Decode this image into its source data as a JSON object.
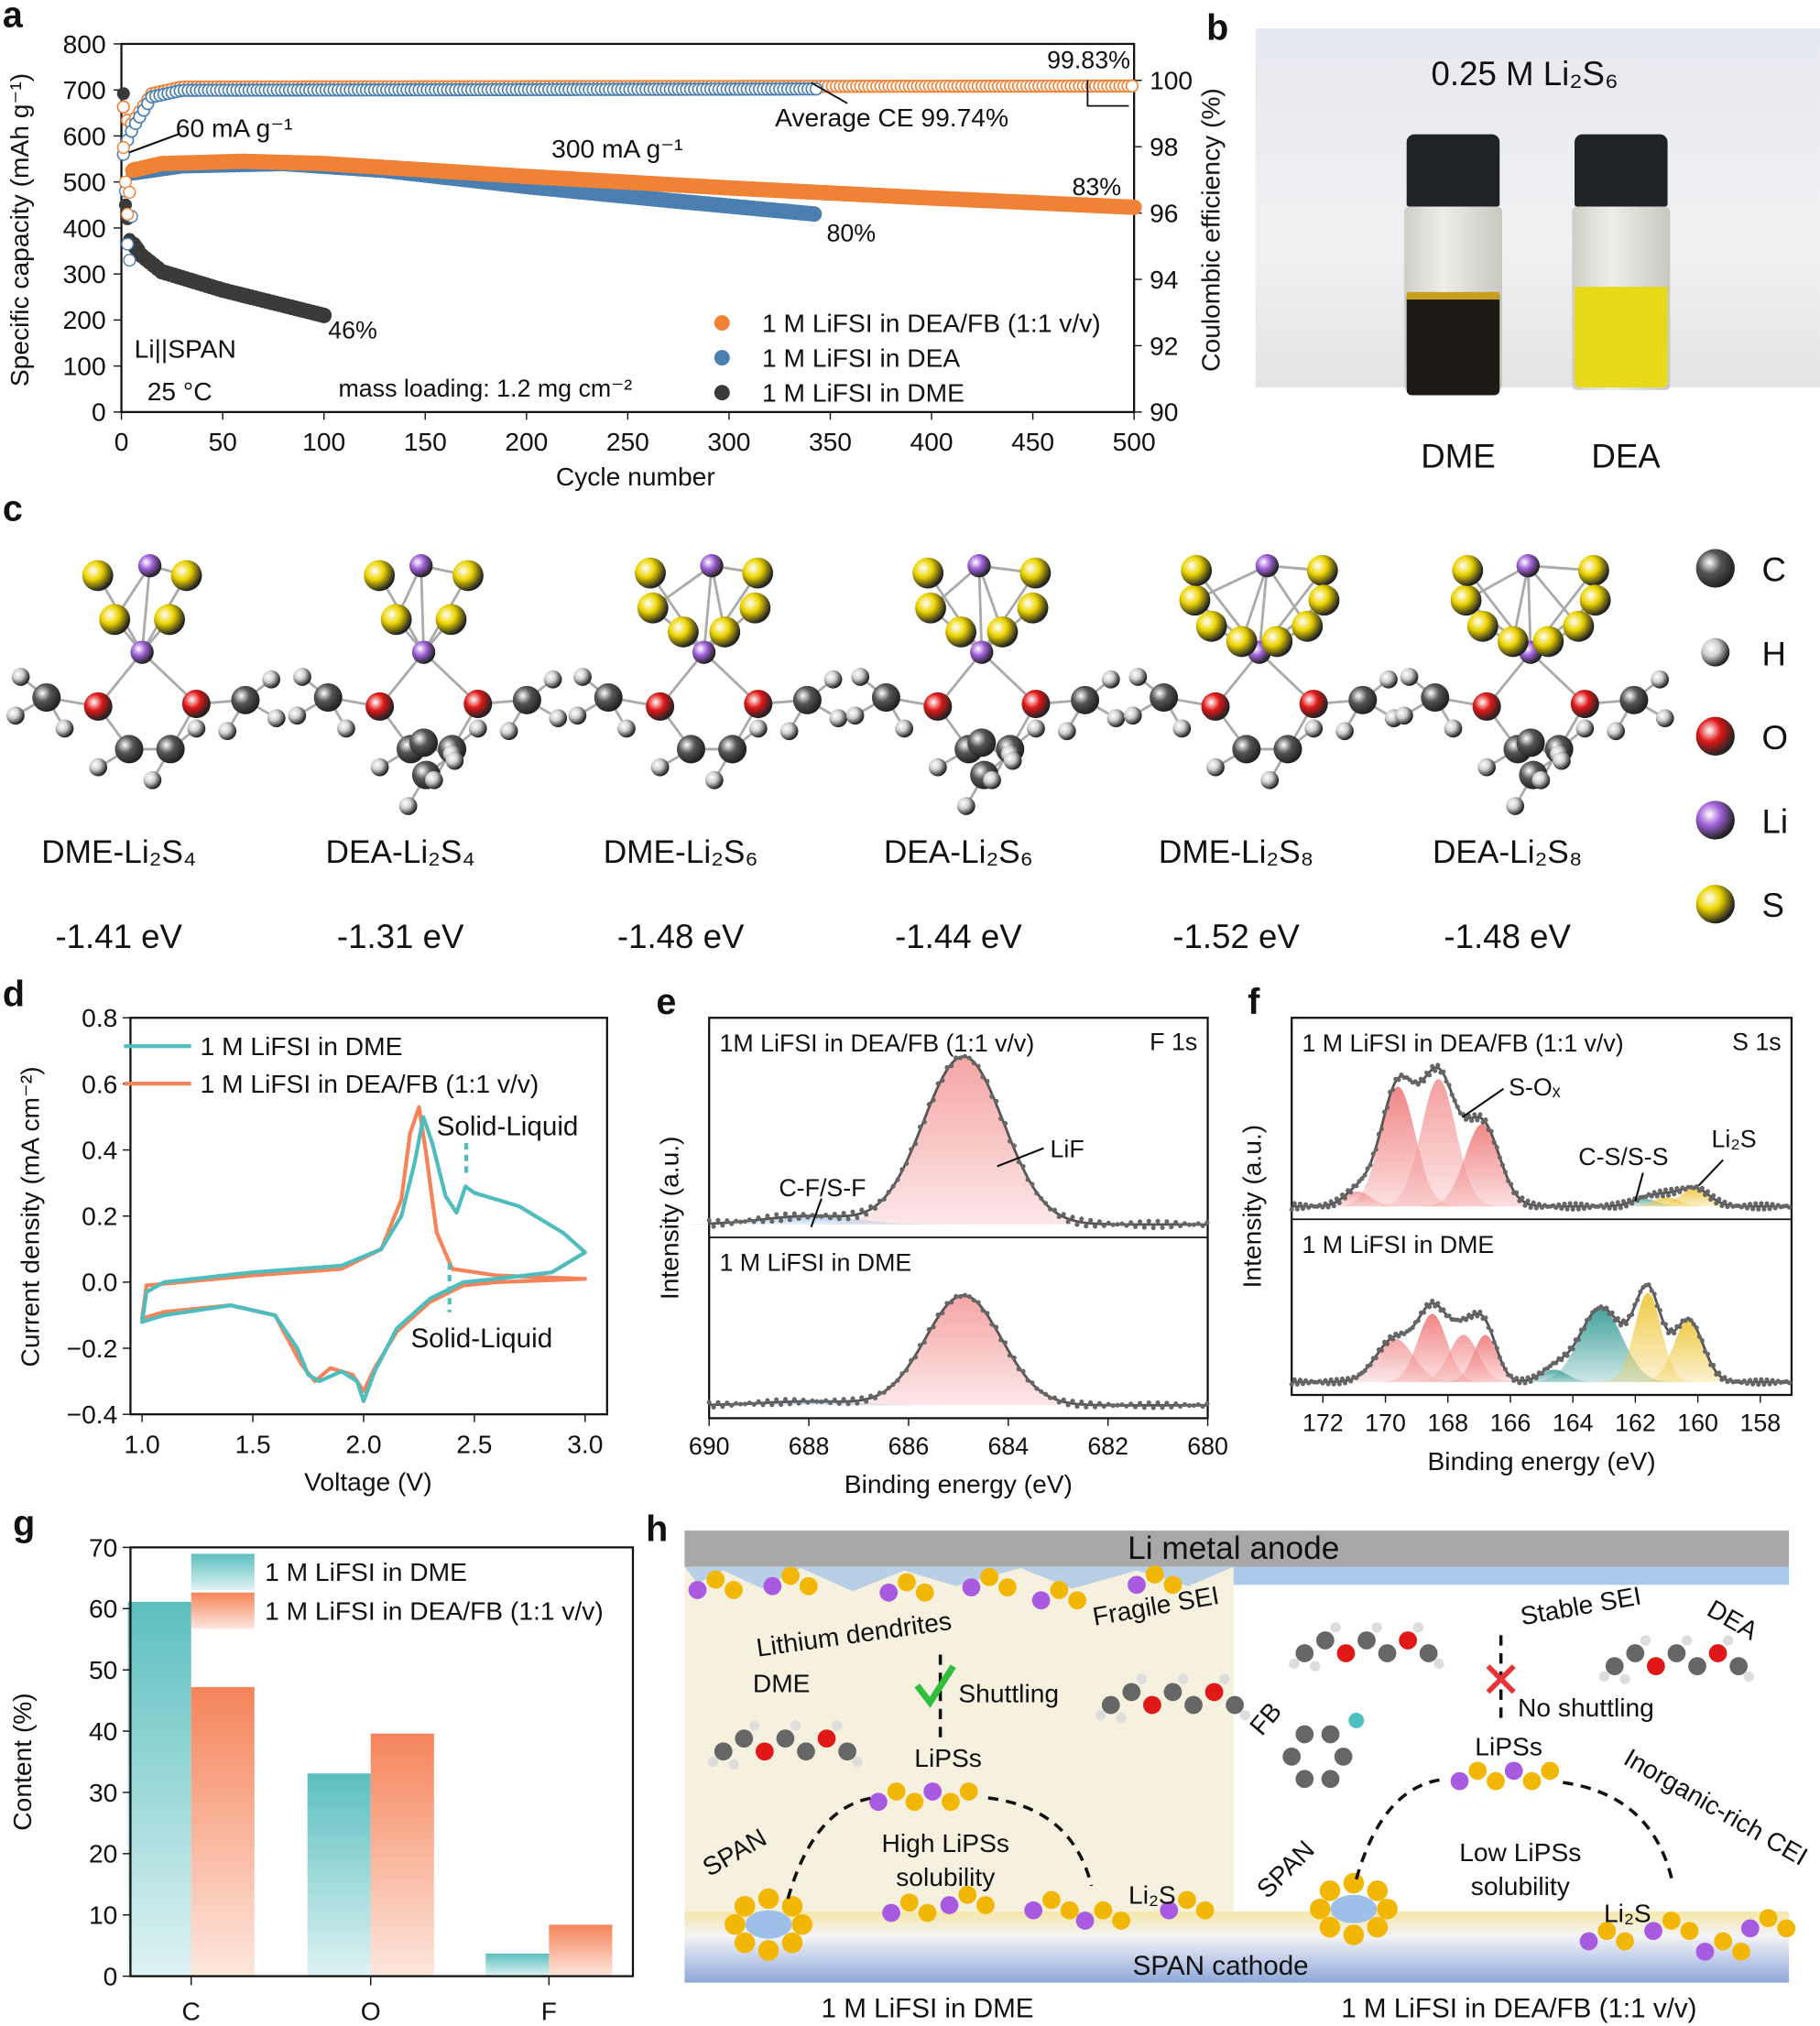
{
  "panel_labels": {
    "a": "a",
    "b": "b",
    "c": "c",
    "d": "d",
    "e": "e",
    "f": "f",
    "g": "g",
    "h": "h"
  },
  "colors": {
    "orange": "#f08236",
    "blue": "#4a7fb0",
    "dark": "#3a3a3a",
    "teal": "#4fbdbd",
    "salmon": "#f5845a",
    "fit_gray": "#707070"
  },
  "chart_data": [
    {
      "id": "a",
      "type": "scatter",
      "xlabel": "Cycle number",
      "ylabel": "Specific capacity (mAh g⁻¹)",
      "y2label": "Coulombic efficiency (%)",
      "xlim": [
        0,
        500
      ],
      "ylim": [
        0,
        800
      ],
      "y2lim": [
        90,
        101.1
      ],
      "xticks": [
        0,
        50,
        100,
        150,
        200,
        250,
        300,
        350,
        400,
        450,
        500
      ],
      "yticks": [
        0,
        100,
        200,
        300,
        400,
        500,
        600,
        700,
        800
      ],
      "y2ticks": [
        90,
        92,
        94,
        96,
        98,
        100
      ],
      "series": [
        {
          "name": "1 M LiFSI in DEA/FB (1:1 v/v)",
          "color": "#f08236",
          "capacity": [
            [
              1,
              575
            ],
            [
              2,
              500
            ],
            [
              3,
              430
            ],
            [
              5,
              525
            ],
            [
              20,
              540
            ],
            [
              60,
              545
            ],
            [
              100,
              540
            ],
            [
              200,
              512
            ],
            [
              300,
              487
            ],
            [
              400,
              465
            ],
            [
              500,
              445
            ]
          ],
          "ce": [
            [
              1,
              99.2
            ],
            [
              4,
              98.6
            ],
            [
              15,
              99.6
            ],
            [
              30,
              99.8
            ],
            [
              500,
              99.83
            ]
          ]
        },
        {
          "name": "1 M LiFSI in DEA",
          "color": "#4a7fb0",
          "capacity": [
            [
              1,
              560
            ],
            [
              2,
              480
            ],
            [
              3,
              365
            ],
            [
              4,
              330
            ],
            [
              6,
              520
            ],
            [
              30,
              535
            ],
            [
              80,
              540
            ],
            [
              130,
              525
            ],
            [
              200,
              490
            ],
            [
              270,
              460
            ],
            [
              343,
              430
            ]
          ],
          "ce": [
            [
              3,
              98.2
            ],
            [
              6,
              98.6
            ],
            [
              15,
              99.5
            ],
            [
              30,
              99.7
            ],
            [
              343,
              99.74
            ]
          ]
        },
        {
          "name": "1 M LiFSI in DME",
          "color": "#3a3a3a",
          "capacity": [
            [
              1,
              560
            ],
            [
              2,
              450
            ],
            [
              3,
              420
            ],
            [
              4,
              375
            ],
            [
              5,
              370
            ],
            [
              10,
              340
            ],
            [
              20,
              305
            ],
            [
              50,
              265
            ],
            [
              100,
              210
            ]
          ],
          "ce": [
            [
              1,
              99.6
            ]
          ]
        }
      ],
      "annotations": {
        "rate1": "60 mA g⁻¹",
        "rate2": "300 mA g⁻¹",
        "ce_max": "99.83%",
        "ce_avg": "Average CE 99.74%",
        "ret_deafb": "83%",
        "ret_dea": "80%",
        "ret_dme": "46%",
        "cell": "Li||SPAN",
        "temp": "25 °C",
        "loading": "mass loading: 1.2 mg cm⁻²"
      },
      "grid": false,
      "legend": "bottom-right"
    },
    {
      "id": "d",
      "type": "line",
      "xlabel": "Voltage (V)",
      "ylabel": "Current density (mA cm⁻²)",
      "xlim": [
        0.9,
        3.1
      ],
      "ylim": [
        -0.4,
        0.8
      ],
      "xticks": [
        1.0,
        1.5,
        2.0,
        2.5,
        3.0
      ],
      "yticks": [
        -0.4,
        -0.2,
        0.0,
        0.2,
        0.4,
        0.6,
        0.8
      ],
      "series": [
        {
          "name": "1 M LiFSI in DME",
          "color": "#4fbdbd",
          "points": [
            [
              1.0,
              -0.12
            ],
            [
              1.02,
              -0.03
            ],
            [
              1.1,
              0.0
            ],
            [
              1.5,
              0.03
            ],
            [
              1.9,
              0.05
            ],
            [
              2.08,
              0.1
            ],
            [
              2.17,
              0.2
            ],
            [
              2.23,
              0.36
            ],
            [
              2.27,
              0.5
            ],
            [
              2.31,
              0.42
            ],
            [
              2.37,
              0.26
            ],
            [
              2.42,
              0.21
            ],
            [
              2.46,
              0.29
            ],
            [
              2.5,
              0.27
            ],
            [
              2.7,
              0.23
            ],
            [
              2.9,
              0.15
            ],
            [
              3.0,
              0.09
            ],
            [
              2.85,
              0.03
            ],
            [
              2.6,
              0.01
            ],
            [
              2.45,
              0.0
            ],
            [
              2.3,
              -0.05
            ],
            [
              2.15,
              -0.14
            ],
            [
              2.05,
              -0.27
            ],
            [
              2.0,
              -0.36
            ],
            [
              1.97,
              -0.3
            ],
            [
              1.9,
              -0.27
            ],
            [
              1.8,
              -0.3
            ],
            [
              1.75,
              -0.28
            ],
            [
              1.7,
              -0.2
            ],
            [
              1.6,
              -0.1
            ],
            [
              1.4,
              -0.07
            ],
            [
              1.1,
              -0.1
            ],
            [
              1.0,
              -0.12
            ]
          ]
        },
        {
          "name": "1 M LiFSI in DEA/FB (1:1 v/v)",
          "color": "#f5845a",
          "points": [
            [
              1.0,
              -0.11
            ],
            [
              1.02,
              -0.01
            ],
            [
              1.5,
              0.02
            ],
            [
              1.9,
              0.04
            ],
            [
              2.08,
              0.1
            ],
            [
              2.17,
              0.25
            ],
            [
              2.21,
              0.45
            ],
            [
              2.25,
              0.53
            ],
            [
              2.28,
              0.4
            ],
            [
              2.33,
              0.15
            ],
            [
              2.4,
              0.04
            ],
            [
              2.6,
              0.02
            ],
            [
              3.0,
              0.01
            ],
            [
              2.6,
              0.0
            ],
            [
              2.45,
              -0.01
            ],
            [
              2.3,
              -0.06
            ],
            [
              2.15,
              -0.15
            ],
            [
              2.05,
              -0.26
            ],
            [
              2.0,
              -0.33
            ],
            [
              1.95,
              -0.28
            ],
            [
              1.85,
              -0.26
            ],
            [
              1.78,
              -0.3
            ],
            [
              1.72,
              -0.25
            ],
            [
              1.6,
              -0.1
            ],
            [
              1.4,
              -0.07
            ],
            [
              1.1,
              -0.09
            ],
            [
              1.0,
              -0.11
            ]
          ]
        }
      ],
      "annotations": {
        "oxidation": "Solid-Liquid",
        "reduction": "Solid-Liquid"
      },
      "legend": "top-left"
    },
    {
      "id": "e",
      "type": "area",
      "xlabel": "Binding energy (eV)",
      "ylabel": "Intensity (a.u.)",
      "xlim": [
        690,
        680
      ],
      "xticks": [
        690,
        688,
        686,
        684,
        682,
        680
      ],
      "corner_label": "F 1s",
      "spectra": [
        {
          "name": "1M LiFSI in DEA/FB (1:1 v/v)",
          "peaks": [
            {
              "label": "LiF",
              "center": 684.9,
              "height": 1.0,
              "fwhm": 1.9,
              "color": "#f4a0a0"
            },
            {
              "label": "C-F/S-F",
              "center": 688.0,
              "height": 0.05,
              "fwhm": 2.2,
              "color": "#a8c8e8"
            }
          ]
        },
        {
          "name": "1 M LiFSI in DME",
          "peaks": [
            {
              "label": "",
              "center": 684.9,
              "height": 0.85,
              "fwhm": 1.8,
              "color": "#f4a0a0"
            },
            {
              "label": "",
              "center": 688.0,
              "height": 0.03,
              "fwhm": 2.2,
              "color": "#a8c8e8"
            }
          ]
        }
      ]
    },
    {
      "id": "f",
      "type": "area",
      "xlabel": "Binding energy (eV)",
      "ylabel": "Intensity (a.u.)",
      "xlim": [
        173,
        157
      ],
      "xticks": [
        172,
        170,
        168,
        166,
        164,
        162,
        160,
        158
      ],
      "corner_label": "S 1s",
      "labels": {
        "sox": "S-Oₓ",
        "cs": "C-S/S-S",
        "li2s": "Li₂S"
      },
      "spectra": [
        {
          "name": "1 M LiFSI in DEA/FB (1:1 v/v)",
          "peaks": [
            {
              "center": 170.9,
              "height": 0.1,
              "fwhm": 1.0,
              "color": "#f4a0a0"
            },
            {
              "center": 169.6,
              "height": 0.8,
              "fwhm": 1.3,
              "color": "#f08080"
            },
            {
              "center": 168.3,
              "height": 0.85,
              "fwhm": 1.3,
              "color": "#f49a9a"
            },
            {
              "center": 166.9,
              "height": 0.55,
              "fwhm": 1.3,
              "color": "#f08080"
            },
            {
              "center": 161.7,
              "height": 0.05,
              "fwhm": 1.0,
              "color": "#6ab0ae"
            },
            {
              "center": 161.0,
              "height": 0.06,
              "fwhm": 1.0,
              "color": "#f0c840"
            },
            {
              "center": 160.1,
              "height": 0.12,
              "fwhm": 1.1,
              "color": "#f0c840"
            }
          ]
        },
        {
          "name": "1 M LiFSI in DME",
          "peaks": [
            {
              "center": 169.7,
              "height": 0.35,
              "fwhm": 1.4,
              "color": "#f4a0a0"
            },
            {
              "center": 168.5,
              "height": 0.55,
              "fwhm": 1.1,
              "color": "#f08080"
            },
            {
              "center": 167.5,
              "height": 0.38,
              "fwhm": 1.1,
              "color": "#f49a9a"
            },
            {
              "center": 166.8,
              "height": 0.38,
              "fwhm": 0.9,
              "color": "#f08080"
            },
            {
              "center": 164.6,
              "height": 0.1,
              "fwhm": 1.0,
              "color": "#4aa5a0"
            },
            {
              "center": 163.1,
              "height": 0.6,
              "fwhm": 1.6,
              "color": "#3a9d98"
            },
            {
              "center": 161.6,
              "height": 0.72,
              "fwhm": 1.0,
              "color": "#f0c840"
            },
            {
              "center": 160.3,
              "height": 0.5,
              "fwhm": 1.1,
              "color": "#f0c840"
            }
          ]
        }
      ]
    },
    {
      "id": "g",
      "type": "bar",
      "ylabel": "Content (%)",
      "categories": [
        "C",
        "O",
        "F"
      ],
      "ylim": [
        0,
        70
      ],
      "yticks": [
        0,
        10,
        20,
        30,
        40,
        50,
        60,
        70
      ],
      "series": [
        {
          "name": "1 M LiFSI in DME",
          "color": "#5cbfbf",
          "values": [
            61.1,
            33.1,
            3.7
          ]
        },
        {
          "name": "1 M LiFSI in DEA/FB (1:1 v/v)",
          "color": "#f5845a",
          "values": [
            47.2,
            39.6,
            8.4
          ]
        }
      ],
      "legend": "top-right"
    }
  ],
  "panel_b": {
    "title": "0.25 M Li₂S₆",
    "vials": [
      {
        "label": "DME",
        "color": "#1e1a16"
      },
      {
        "label": "DEA",
        "color": "#e8d81a"
      }
    ]
  },
  "panel_c": {
    "structures": [
      {
        "name": "DME-Li₂S₄",
        "energy": "-1.41 eV",
        "solvent": "DME",
        "s": 4
      },
      {
        "name": "DEA-Li₂S₄",
        "energy": "-1.31 eV",
        "solvent": "DEA",
        "s": 4
      },
      {
        "name": "DME-Li₂S₆",
        "energy": "-1.48 eV",
        "solvent": "DME",
        "s": 6
      },
      {
        "name": "DEA-Li₂S₆",
        "energy": "-1.44 eV",
        "solvent": "DEA",
        "s": 6
      },
      {
        "name": "DME-Li₂S₈",
        "energy": "-1.52 eV",
        "solvent": "DME",
        "s": 8
      },
      {
        "name": "DEA-Li₂S₈",
        "energy": "-1.48 eV",
        "solvent": "DEA",
        "s": 8
      }
    ],
    "legend": [
      {
        "label": "C",
        "color": "#555555"
      },
      {
        "label": "H",
        "color": "#d0d0d0"
      },
      {
        "label": "O",
        "color": "#e01818"
      },
      {
        "label": "Li",
        "color": "#a060d8"
      },
      {
        "label": "S",
        "color": "#ecd400"
      }
    ]
  },
  "panel_h": {
    "anode": "Li metal anode",
    "cathode": "SPAN cathode",
    "left": {
      "dendrites": "Lithium dendrites",
      "sei": "Fragile SEI",
      "solvent": "DME",
      "shuttle": "Shuttling",
      "lipss": "LiPSs",
      "solubility": "High LiPSs solubility",
      "span": "SPAN",
      "li2s": "Li₂S",
      "caption": "1 M LiFSI in DME"
    },
    "right": {
      "sei": "Stable SEI",
      "solvent": "DEA",
      "diluent": "FB",
      "shuttle": "No shuttling",
      "lipss": "LiPSs",
      "solubility": "Low LiPSs solubility",
      "span": "SPAN",
      "li2s": "Li₂S",
      "cei": "Inorganic-rich CEI",
      "caption": "1 M LiFSI in DEA/FB (1:1 v/v)"
    }
  }
}
